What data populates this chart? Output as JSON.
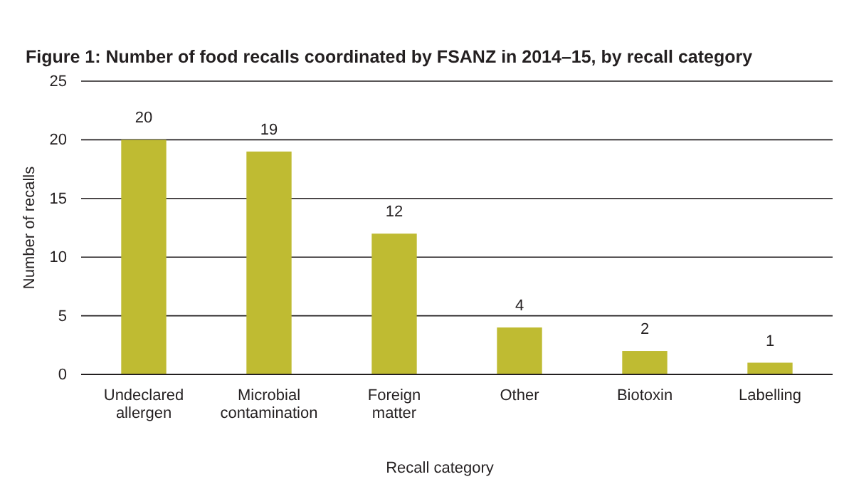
{
  "chart_data": {
    "type": "bar",
    "title": "Figure 1: Number of food recalls coordinated by FSANZ in 2014–15, by recall category",
    "xlabel": "Recall category",
    "ylabel": "Number of recalls",
    "categories": [
      "Undeclared allergen",
      "Microbial contamination",
      "Foreign matter",
      "Other",
      "Biotoxin",
      "Labelling"
    ],
    "values": [
      20,
      19,
      12,
      4,
      2,
      1
    ],
    "color": "#bfbb32",
    "ylim": [
      0,
      25
    ],
    "yticks": [
      0,
      5,
      10,
      15,
      20,
      25
    ],
    "grid": "y",
    "data_labels": true
  }
}
